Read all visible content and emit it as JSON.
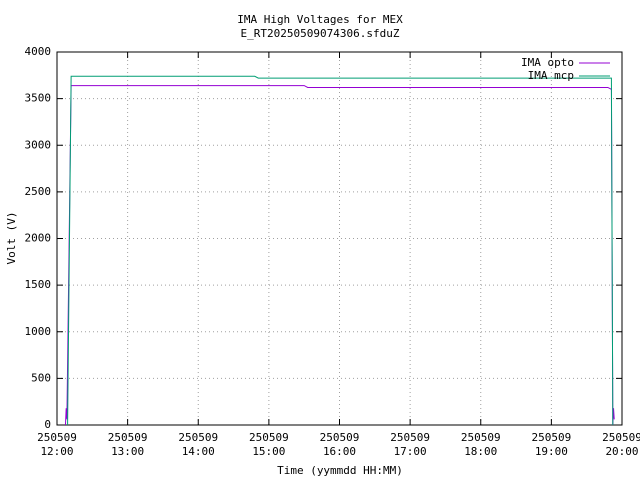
{
  "chart_data": {
    "type": "line",
    "title": "IMA High Voltages for MEX",
    "subtitle": "E_RT20250509074306.sfduZ",
    "x_label": "Time (yymmdd HH:MM)",
    "y_label": "Volt (V)",
    "xlim": [
      12,
      20
    ],
    "xticks": [
      {
        "value": 12,
        "label": [
          "250509",
          "12:00"
        ]
      },
      {
        "value": 13,
        "label": [
          "250509",
          "13:00"
        ]
      },
      {
        "value": 14,
        "label": [
          "250509",
          "14:00"
        ]
      },
      {
        "value": 15,
        "label": [
          "250509",
          "15:00"
        ]
      },
      {
        "value": 16,
        "label": [
          "250509",
          "16:00"
        ]
      },
      {
        "value": 17,
        "label": [
          "250509",
          "17:00"
        ]
      },
      {
        "value": 18,
        "label": [
          "250509",
          "18:00"
        ]
      },
      {
        "value": 19,
        "label": [
          "250509",
          "19:00"
        ]
      },
      {
        "value": 20,
        "label": [
          "250509",
          "20:00"
        ]
      }
    ],
    "ylim": [
      0,
      4000
    ],
    "yticks": [
      0,
      500,
      1000,
      1500,
      2000,
      2500,
      3000,
      3500,
      4000
    ],
    "grid": true,
    "legend": "top-right",
    "series": [
      {
        "name": "IMA opto",
        "color": "#9400d3",
        "x": [
          12.12,
          12.13,
          12.14,
          12.2,
          13.5,
          15.5,
          15.55,
          17.5,
          19.8,
          19.85,
          19.87,
          19.88,
          19.89
        ],
        "values": [
          0,
          180,
          60,
          3640,
          3640,
          3640,
          3620,
          3620,
          3620,
          3600,
          0,
          180,
          60
        ]
      },
      {
        "name": "IMA mcp",
        "color": "#009e73",
        "x": [
          12.15,
          12.2,
          14.8,
          14.85,
          17.5,
          19.85,
          19.87
        ],
        "values": [
          0,
          3740,
          3740,
          3720,
          3720,
          3720,
          0
        ]
      }
    ]
  }
}
